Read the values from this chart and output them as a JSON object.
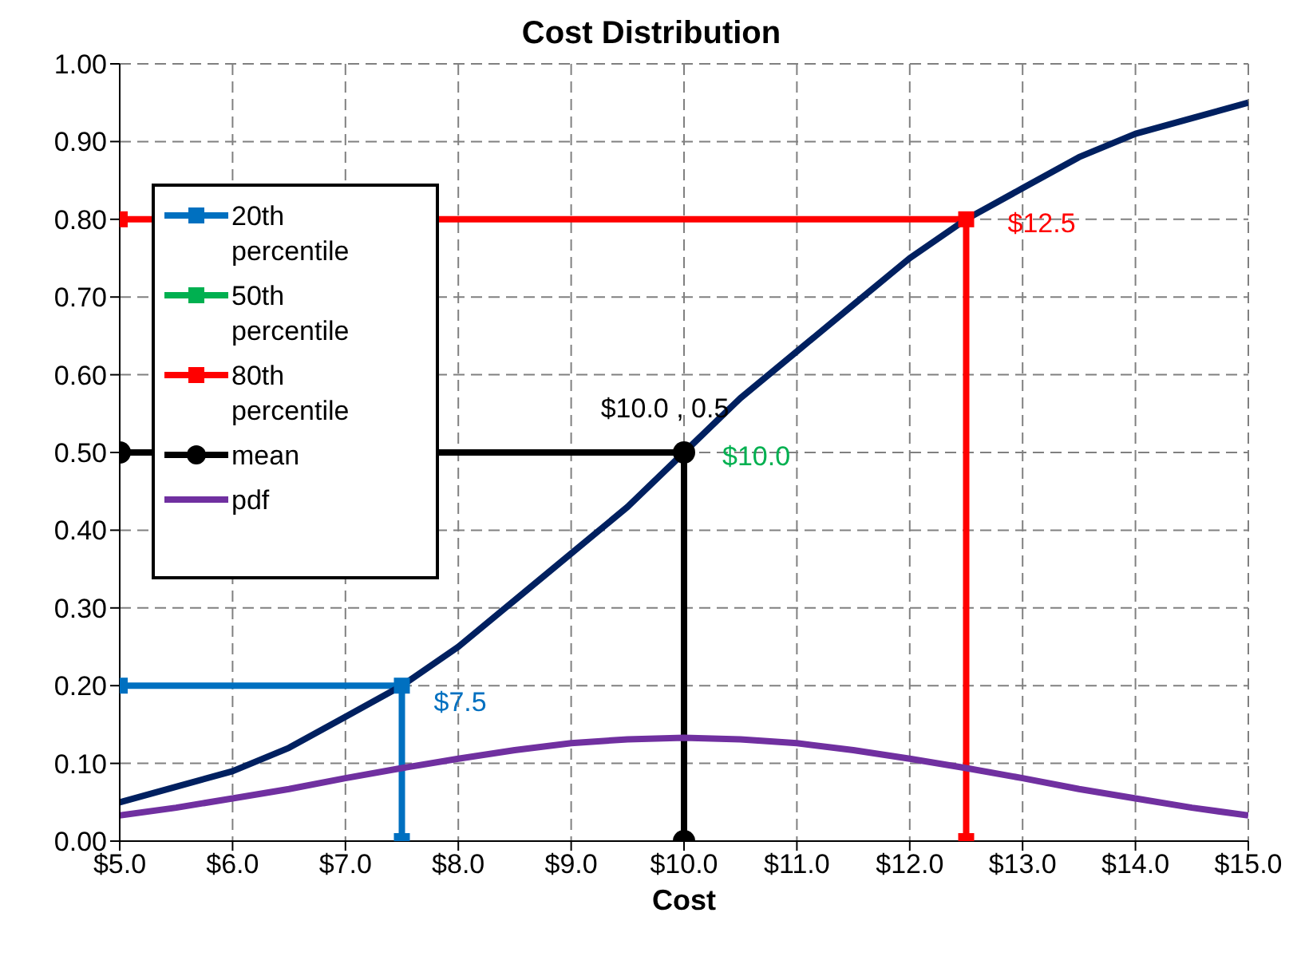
{
  "chart_data": {
    "type": "line",
    "title": "Cost Distribution",
    "xlabel": "Cost",
    "xlim": [
      5,
      15
    ],
    "xticks": [
      {
        "value": 5,
        "label": "$5.0"
      },
      {
        "value": 6,
        "label": "$6.0"
      },
      {
        "value": 7,
        "label": "$7.0"
      },
      {
        "value": 8,
        "label": "$8.0"
      },
      {
        "value": 9,
        "label": "$9.0"
      },
      {
        "value": 10,
        "label": "$10.0"
      },
      {
        "value": 11,
        "label": "$11.0"
      },
      {
        "value": 12,
        "label": "$12.0"
      },
      {
        "value": 13,
        "label": "$13.0"
      },
      {
        "value": 14,
        "label": "$14.0"
      },
      {
        "value": 15,
        "label": "$15.0"
      }
    ],
    "ylim": [
      0,
      1
    ],
    "yticks": [
      {
        "value": 0,
        "label": "0.00"
      },
      {
        "value": 0.1,
        "label": "0.10"
      },
      {
        "value": 0.2,
        "label": "0.20"
      },
      {
        "value": 0.3,
        "label": "0.30"
      },
      {
        "value": 0.4,
        "label": "0.40"
      },
      {
        "value": 0.5,
        "label": "0.50"
      },
      {
        "value": 0.6,
        "label": "0.60"
      },
      {
        "value": 0.7,
        "label": "0.70"
      },
      {
        "value": 0.8,
        "label": "0.80"
      },
      {
        "value": 0.9,
        "label": "0.90"
      },
      {
        "value": 1,
        "label": "1.00"
      }
    ],
    "grid": true,
    "legend": "top left",
    "line_style": "solid",
    "series": [
      {
        "name": "20th percentile",
        "color": "#0070c0",
        "marker": "square",
        "x": [
          5,
          7.5,
          7.5
        ],
        "values": [
          0.2,
          0.2,
          0
        ]
      },
      {
        "name": "50th percentile",
        "color": "#00b050",
        "marker": "square"
      },
      {
        "name": "80th percentile",
        "color": "#ff0000",
        "marker": "square",
        "x": [
          5,
          12.5,
          12.5
        ],
        "values": [
          0.8,
          0.8,
          0
        ]
      },
      {
        "name": "mean",
        "color": "#000000",
        "marker": "circle",
        "x": [
          5,
          10,
          10
        ],
        "values": [
          0.5,
          0.5,
          0
        ]
      },
      {
        "name": "pdf",
        "color": "#7030a0",
        "marker": "none",
        "x": [
          5,
          5.5,
          6,
          6.5,
          7,
          7.5,
          8,
          8.5,
          9,
          9.5,
          10,
          10.5,
          11,
          11.5,
          12,
          12.5,
          13,
          13.5,
          14,
          14.5,
          15
        ],
        "values": [
          0.033,
          0.043,
          0.055,
          0.067,
          0.081,
          0.094,
          0.106,
          0.117,
          0.126,
          0.131,
          0.133,
          0.131,
          0.126,
          0.117,
          0.106,
          0.094,
          0.081,
          0.067,
          0.055,
          0.043,
          0.033
        ]
      },
      {
        "color": "#002060",
        "marker": "none",
        "x": [
          5,
          5.5,
          6,
          6.5,
          7,
          7.5,
          8,
          8.5,
          9,
          9.5,
          10,
          10.5,
          11,
          11.5,
          12,
          12.5,
          13,
          13.5,
          14,
          14.5,
          15
        ],
        "values": [
          0.05,
          0.07,
          0.09,
          0.12,
          0.16,
          0.2,
          0.25,
          0.31,
          0.37,
          0.43,
          0.5,
          0.57,
          0.63,
          0.69,
          0.75,
          0.8,
          0.84,
          0.88,
          0.91,
          0.93,
          0.95
        ]
      }
    ],
    "annotations": [
      {
        "text": "$7.5",
        "x": 7.5,
        "y": 0.2
      },
      {
        "text": "$10.0",
        "x": 10,
        "y": 0.5
      },
      {
        "text": "$12.5",
        "x": 12.5,
        "y": 0.8
      },
      {
        "text": "$10.0 , 0.5",
        "x": 10,
        "y": 0.5
      }
    ]
  }
}
